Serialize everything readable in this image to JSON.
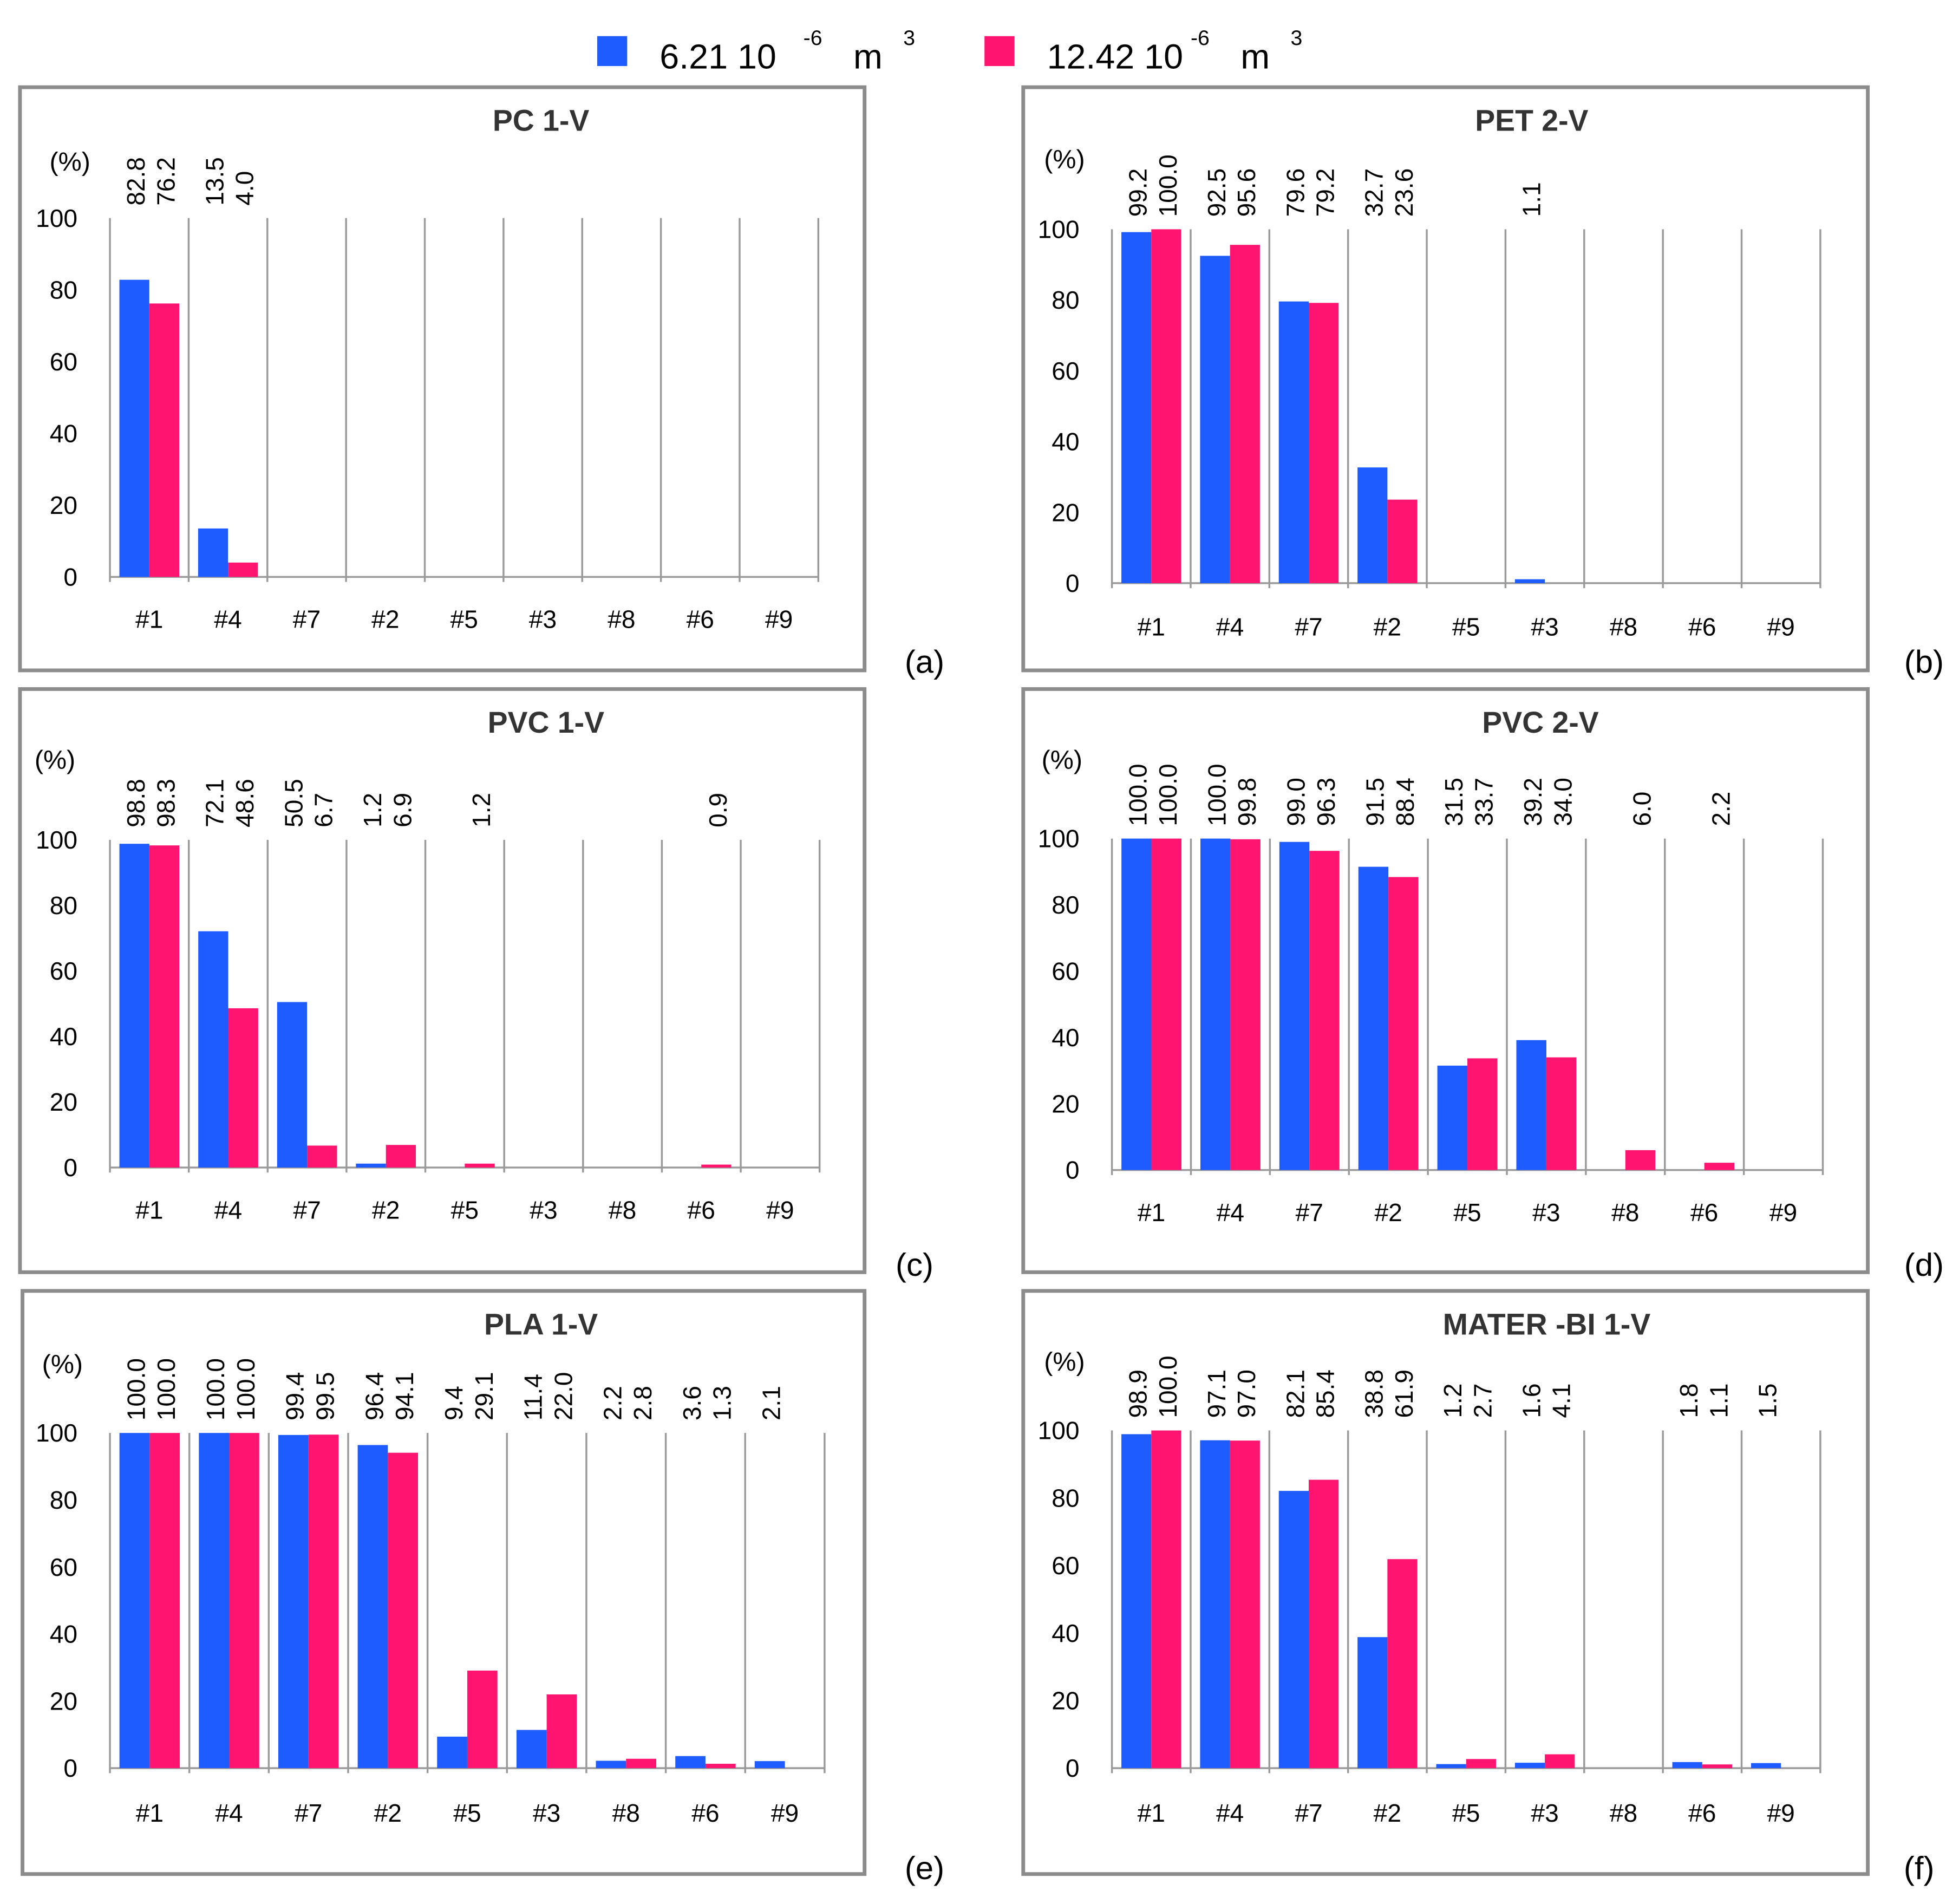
{
  "legend": {
    "entries": [
      {
        "label": "6.21 10",
        "exp": "-6",
        "unit": "m",
        "unit_exp": "3",
        "color": "#1f5cff"
      },
      {
        "label": "12.42 10",
        "exp": "-6",
        "unit": "m",
        "unit_exp": "3",
        "color": "#ff1470"
      }
    ]
  },
  "chart_data": [
    {
      "type": "bar",
      "title": "PC 1-V",
      "panel_label": "(a)",
      "ylabel": "(%)",
      "ylim": [
        0,
        100
      ],
      "yticks": [
        "0",
        "20",
        "40",
        "60",
        "80",
        "100"
      ],
      "categories": [
        "#1",
        "#4",
        "#7",
        "#2",
        "#5",
        "#3",
        "#8",
        "#6",
        "#9"
      ],
      "series": [
        {
          "name": "6.21 10-6 m3",
          "values": [
            82.8,
            13.5,
            null,
            null,
            null,
            null,
            null,
            null,
            null
          ]
        },
        {
          "name": "12.42 10-6 m3",
          "values": [
            76.2,
            4.0,
            null,
            null,
            null,
            null,
            null,
            null,
            null
          ]
        }
      ],
      "data_labels": [
        [
          "82.8",
          "13.5",
          null,
          null,
          null,
          null,
          null,
          null,
          null
        ],
        [
          "76.2",
          "4.0",
          null,
          null,
          null,
          null,
          null,
          null,
          null
        ]
      ]
    },
    {
      "type": "bar",
      "title": "PET 2-V",
      "panel_label": "(b)",
      "ylabel": "(%)",
      "ylim": [
        0,
        100
      ],
      "yticks": [
        "0",
        "20",
        "40",
        "60",
        "80",
        "100"
      ],
      "categories": [
        "#1",
        "#4",
        "#7",
        "#2",
        "#5",
        "#3",
        "#8",
        "#6",
        "#9"
      ],
      "series": [
        {
          "name": "6.21 10-6 m3",
          "values": [
            99.2,
            92.5,
            79.6,
            32.7,
            null,
            1.1,
            null,
            null,
            null
          ]
        },
        {
          "name": "12.42 10-6 m3",
          "values": [
            100.0,
            95.6,
            79.2,
            23.6,
            null,
            null,
            null,
            null,
            null
          ]
        }
      ],
      "data_labels": [
        [
          "99.2",
          "92.5",
          "79.6",
          "32.7",
          null,
          "1.1",
          null,
          null,
          null
        ],
        [
          "100.0",
          "95.6",
          "79.2",
          "23.6",
          null,
          null,
          null,
          null,
          null
        ]
      ]
    },
    {
      "type": "bar",
      "title": "PVC 1-V",
      "panel_label": "(c)",
      "ylabel": "(%)",
      "ylim": [
        0,
        100
      ],
      "yticks": [
        "0",
        "20",
        "40",
        "60",
        "80",
        "100"
      ],
      "categories": [
        "#1",
        "#4",
        "#7",
        "#2",
        "#5",
        "#3",
        "#8",
        "#6",
        "#9"
      ],
      "series": [
        {
          "name": "6.21 10-6 m3",
          "values": [
            98.8,
            72.1,
            50.5,
            1.2,
            null,
            null,
            null,
            null,
            null
          ]
        },
        {
          "name": "12.42 10-6 m3",
          "values": [
            98.3,
            48.6,
            6.7,
            6.9,
            1.2,
            null,
            null,
            0.9,
            null
          ]
        }
      ],
      "data_labels": [
        [
          "98.8",
          "72.1",
          "50.5",
          "1.2",
          null,
          null,
          null,
          null,
          null
        ],
        [
          "98.3",
          "48.6",
          "6.7",
          "6.9",
          "1.2",
          null,
          null,
          "0.9",
          null
        ]
      ]
    },
    {
      "type": "bar",
      "title": "PVC 2-V",
      "panel_label": "(d)",
      "ylabel": "(%)",
      "ylim": [
        0,
        100
      ],
      "yticks": [
        "0",
        "20",
        "40",
        "60",
        "80",
        "100"
      ],
      "categories": [
        "#1",
        "#4",
        "#7",
        "#2",
        "#5",
        "#3",
        "#8",
        "#6",
        "#9"
      ],
      "series": [
        {
          "name": "6.21 10-6 m3",
          "values": [
            100.0,
            100.0,
            99.0,
            91.5,
            31.5,
            39.2,
            null,
            null,
            null
          ]
        },
        {
          "name": "12.42 10-6 m3",
          "values": [
            100.0,
            99.8,
            96.3,
            88.4,
            33.7,
            34.0,
            6.0,
            2.2,
            null
          ]
        }
      ],
      "data_labels": [
        [
          "100.0",
          "100.0",
          "99.0",
          "91.5",
          "31.5",
          "39.2",
          null,
          null,
          null
        ],
        [
          "100.0",
          "99.8",
          "96.3",
          "88.4",
          "33.7",
          "34.0",
          "6.0",
          "2.2",
          null
        ]
      ]
    },
    {
      "type": "bar",
      "title": "PLA 1-V",
      "panel_label": "(e)",
      "ylabel": "(%)",
      "ylim": [
        0,
        100
      ],
      "yticks": [
        "0",
        "20",
        "40",
        "60",
        "80",
        "100"
      ],
      "categories": [
        "#1",
        "#4",
        "#7",
        "#2",
        "#5",
        "#3",
        "#8",
        "#6",
        "#9"
      ],
      "series": [
        {
          "name": "6.21 10-6 m3",
          "values": [
            100.0,
            100.0,
            99.4,
            96.4,
            9.4,
            11.4,
            2.2,
            3.6,
            2.1
          ]
        },
        {
          "name": "12.42 10-6 m3",
          "values": [
            100.0,
            100.0,
            99.5,
            94.1,
            29.1,
            22.0,
            2.8,
            1.3,
            null
          ]
        }
      ],
      "data_labels": [
        [
          "100.0",
          "100.0",
          "99.4",
          "96.4",
          "9.4",
          "11.4",
          "2.2",
          "3.6",
          "2.1"
        ],
        [
          "100.0",
          "100.0",
          "99.5",
          "94.1",
          "29.1",
          "22.0",
          "2.8",
          "1.3",
          null
        ]
      ]
    },
    {
      "type": "bar",
      "title": "MATER -BI 1-V",
      "panel_label": "(f)",
      "ylabel": "(%)",
      "ylim": [
        0,
        100
      ],
      "yticks": [
        "0",
        "20",
        "40",
        "60",
        "80",
        "100"
      ],
      "categories": [
        "#1",
        "#4",
        "#7",
        "#2",
        "#5",
        "#3",
        "#8",
        "#6",
        "#9"
      ],
      "series": [
        {
          "name": "6.21 10-6 m3",
          "values": [
            98.9,
            97.1,
            82.1,
            38.8,
            1.2,
            1.6,
            null,
            1.8,
            1.5
          ]
        },
        {
          "name": "12.42 10-6 m3",
          "values": [
            100.0,
            97.0,
            85.4,
            61.9,
            2.7,
            4.1,
            null,
            1.1,
            null
          ]
        }
      ],
      "data_labels": [
        [
          "98.9",
          "97.1",
          "82.1",
          "38.8",
          "1.2",
          "1.6",
          null,
          "1.8",
          "1.5"
        ],
        [
          "100.0",
          "97.0",
          "85.4",
          "61.9",
          "2.7",
          "4.1",
          null,
          "1.1",
          null
        ]
      ]
    }
  ]
}
